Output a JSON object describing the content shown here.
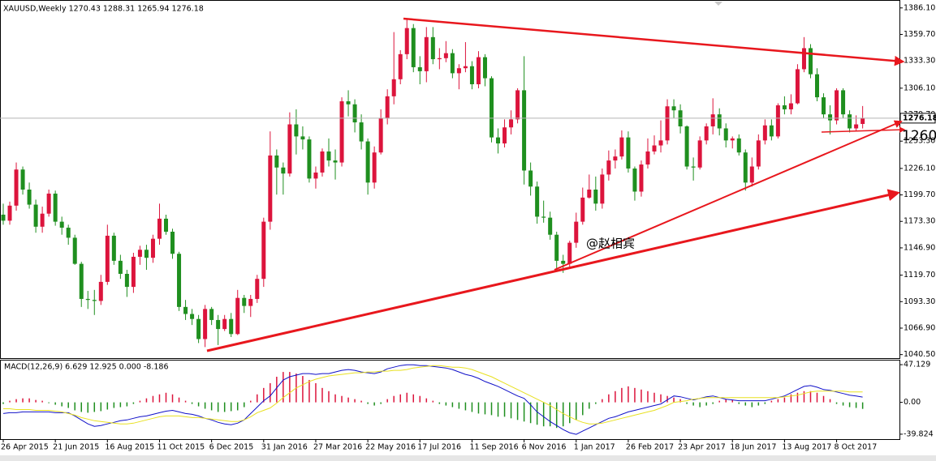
{
  "chart_data": [
    {
      "type": "candlestick",
      "title": "XAUUSD,Weekly 1270.43 1288.31 1265.94 1276.18",
      "annotations": [
        "1260",
        "@赵相宾"
      ],
      "categories": [
        "26 Apr 2015",
        null,
        null,
        null,
        null,
        null,
        null,
        null,
        "21 Jun 2015",
        null,
        null,
        null,
        null,
        null,
        null,
        null,
        "16 Aug 2015",
        null,
        null,
        null,
        null,
        null,
        null,
        null,
        "11 Oct 2015",
        null,
        null,
        null,
        null,
        null,
        null,
        null,
        "6 Dec 2015",
        null,
        null,
        null,
        null,
        null,
        null,
        null,
        "31 Jan 2016",
        null,
        null,
        null,
        null,
        null,
        null,
        null,
        "27 Mar 2016",
        null,
        null,
        null,
        null,
        null,
        null,
        null,
        "22 May 2016",
        null,
        null,
        null,
        null,
        null,
        null,
        null,
        "17 Jul 2016",
        null,
        null,
        null,
        null,
        null,
        null,
        null,
        "11 Sep 2016",
        null,
        null,
        null,
        null,
        null,
        null,
        null,
        "6 Nov 2016",
        null,
        null,
        null,
        null,
        null,
        null,
        null,
        "1 Jan 2017",
        null,
        null,
        null,
        null,
        null,
        null,
        null,
        "26 Feb 2017",
        null,
        null,
        null,
        null,
        null,
        null,
        null,
        "23 Apr 2017",
        null,
        null,
        null,
        null,
        null,
        null,
        null,
        "18 Jun 2017",
        null,
        null,
        null,
        null,
        null,
        null,
        null,
        "13 Aug 2017",
        null,
        null,
        null,
        null,
        null,
        null,
        null,
        "8 Oct 2017",
        null,
        null,
        null,
        null
      ],
      "open": [
        1180,
        1174,
        1189,
        1225,
        1205,
        1190,
        1168,
        1181,
        1201,
        1173,
        1167,
        1157,
        1131,
        1096,
        1095,
        1094,
        1113,
        1159,
        1134,
        1121,
        1108,
        1138,
        1145,
        1137,
        1156,
        1176,
        1163,
        1141,
        1088,
        1081,
        1076,
        1056,
        1086,
        1075,
        1066,
        1076,
        1061,
        1097,
        1089,
        1096,
        1116,
        1173,
        1239,
        1227,
        1221,
        1270,
        1258,
        1255,
        1216,
        1222,
        1243,
        1234,
        1232,
        1293,
        1290,
        1272,
        1253,
        1212,
        1242,
        1276,
        1298,
        1315,
        1340,
        1366,
        1327,
        1323,
        1357,
        1335,
        1336,
        1341,
        1321,
        1326,
        1328,
        1310,
        1337,
        1316,
        1257,
        1251,
        1267,
        1275,
        1304,
        1224,
        1208,
        1178,
        1177,
        1160,
        1134,
        1131,
        1152,
        1173,
        1197,
        1205,
        1191,
        1220,
        1234,
        1238,
        1257,
        1226,
        1203,
        1230,
        1243,
        1249,
        1254,
        1288,
        1284,
        1268,
        1228,
        1227,
        1254,
        1268,
        1280,
        1266,
        1254,
        1256,
        1242,
        1212,
        1228,
        1254,
        1269,
        1258,
        1289,
        1285,
        1291,
        1325,
        1346,
        1320,
        1297,
        1280,
        1274,
        1304,
        1280,
        1266,
        1270.43
      ],
      "high": [
        1191,
        1193,
        1232,
        1228,
        1212,
        1195,
        1188,
        1205,
        1204,
        1178,
        1170,
        1160,
        1133,
        1104,
        1105,
        1120,
        1170,
        1162,
        1140,
        1125,
        1142,
        1149,
        1150,
        1160,
        1191,
        1180,
        1166,
        1143,
        1095,
        1086,
        1080,
        1090,
        1088,
        1080,
        1080,
        1082,
        1105,
        1100,
        1100,
        1120,
        1177,
        1263,
        1245,
        1232,
        1282,
        1285,
        1268,
        1258,
        1228,
        1246,
        1256,
        1245,
        1297,
        1304,
        1295,
        1280,
        1256,
        1248,
        1285,
        1305,
        1362,
        1344,
        1375,
        1370,
        1338,
        1367,
        1367,
        1346,
        1353,
        1345,
        1330,
        1352,
        1333,
        1343,
        1340,
        1318,
        1266,
        1275,
        1284,
        1306,
        1338,
        1232,
        1213,
        1194,
        1183,
        1163,
        1140,
        1154,
        1182,
        1207,
        1220,
        1218,
        1226,
        1244,
        1245,
        1264,
        1263,
        1228,
        1234,
        1256,
        1259,
        1274,
        1295,
        1295,
        1290,
        1269,
        1237,
        1258,
        1271,
        1296,
        1286,
        1271,
        1258,
        1260,
        1245,
        1237,
        1260,
        1275,
        1275,
        1291,
        1298,
        1300,
        1330,
        1357,
        1350,
        1326,
        1301,
        1289,
        1306,
        1306,
        1284,
        1279,
        1288.31
      ],
      "low": [
        1170,
        1170,
        1184,
        1200,
        1186,
        1162,
        1162,
        1178,
        1169,
        1160,
        1150,
        1130,
        1088,
        1086,
        1080,
        1090,
        1110,
        1130,
        1116,
        1098,
        1102,
        1130,
        1125,
        1132,
        1150,
        1160,
        1136,
        1084,
        1075,
        1070,
        1052,
        1048,
        1070,
        1050,
        1064,
        1058,
        1060,
        1082,
        1078,
        1092,
        1108,
        1165,
        1200,
        1200,
        1218,
        1240,
        1245,
        1212,
        1206,
        1218,
        1228,
        1215,
        1228,
        1278,
        1262,
        1245,
        1200,
        1206,
        1240,
        1270,
        1290,
        1310,
        1335,
        1322,
        1310,
        1312,
        1330,
        1325,
        1332,
        1316,
        1305,
        1322,
        1305,
        1306,
        1308,
        1252,
        1241,
        1247,
        1260,
        1271,
        1210,
        1199,
        1171,
        1172,
        1155,
        1125,
        1122,
        1128,
        1147,
        1170,
        1196,
        1184,
        1186,
        1214,
        1226,
        1235,
        1222,
        1194,
        1198,
        1226,
        1240,
        1242,
        1250,
        1276,
        1261,
        1225,
        1214,
        1225,
        1250,
        1260,
        1259,
        1247,
        1246,
        1239,
        1204,
        1208,
        1225,
        1250,
        1254,
        1256,
        1280,
        1280,
        1290,
        1322,
        1316,
        1293,
        1276,
        1260,
        1270,
        1276,
        1262,
        1264,
        1265.94
      ],
      "close": [
        1174,
        1189,
        1225,
        1205,
        1190,
        1168,
        1181,
        1201,
        1173,
        1167,
        1157,
        1131,
        1096,
        1095,
        1094,
        1113,
        1159,
        1134,
        1121,
        1108,
        1138,
        1145,
        1137,
        1156,
        1176,
        1163,
        1141,
        1088,
        1081,
        1076,
        1056,
        1086,
        1075,
        1066,
        1076,
        1061,
        1097,
        1089,
        1096,
        1116,
        1173,
        1239,
        1227,
        1221,
        1270,
        1258,
        1255,
        1216,
        1222,
        1243,
        1234,
        1232,
        1293,
        1290,
        1272,
        1253,
        1212,
        1242,
        1276,
        1298,
        1315,
        1340,
        1366,
        1327,
        1323,
        1357,
        1335,
        1336,
        1341,
        1321,
        1326,
        1328,
        1310,
        1337,
        1316,
        1257,
        1251,
        1267,
        1275,
        1304,
        1224,
        1208,
        1178,
        1177,
        1160,
        1134,
        1131,
        1152,
        1173,
        1197,
        1205,
        1191,
        1220,
        1234,
        1238,
        1257,
        1226,
        1203,
        1230,
        1243,
        1249,
        1254,
        1288,
        1284,
        1268,
        1228,
        1227,
        1254,
        1268,
        1280,
        1266,
        1254,
        1256,
        1242,
        1212,
        1228,
        1254,
        1269,
        1258,
        1289,
        1285,
        1291,
        1325,
        1346,
        1320,
        1297,
        1280,
        1274,
        1304,
        1280,
        1266,
        1270,
        1276.18
      ],
      "up_color": "#dc143c",
      "down_color": "#1f8f1f",
      "ylim": [
        1037,
        1394
      ],
      "yticks": [
        {
          "value": 1386.1,
          "label": "1386.10"
        },
        {
          "value": 1359.7,
          "label": "1359.70"
        },
        {
          "value": 1333.3,
          "label": "1333.30"
        },
        {
          "value": 1306.1,
          "label": "1306.10"
        },
        {
          "value": 1279.7,
          "label": "1279.70"
        },
        {
          "value": 1253.3,
          "label": "1253.30"
        },
        {
          "value": 1226.1,
          "label": "1226.10"
        },
        {
          "value": 1199.7,
          "label": "1199.70"
        },
        {
          "value": 1173.3,
          "label": "1173.30"
        },
        {
          "value": 1146.9,
          "label": "1146.90"
        },
        {
          "value": 1119.7,
          "label": "1119.70"
        },
        {
          "value": 1093.3,
          "label": "1093.30"
        },
        {
          "value": 1066.9,
          "label": "1066.90"
        },
        {
          "value": 1040.5,
          "label": "1040.50"
        }
      ]
    },
    {
      "type": "macd",
      "title": "MACD(12,26,9) 6.629 12.925 0.000 -8.186",
      "series": [
        {
          "color": "#1010c8",
          "values": [
            -14,
            -13,
            -13,
            -12,
            -12,
            -12,
            -12,
            -12,
            -13,
            -13,
            -13,
            -17,
            -22,
            -27,
            -30,
            -29,
            -27,
            -25,
            -23,
            -22,
            -20,
            -18,
            -17,
            -15,
            -13,
            -11,
            -10,
            -12,
            -14,
            -15,
            -17,
            -20,
            -22,
            -25,
            -27,
            -28,
            -26,
            -22,
            -14,
            -6,
            2,
            8,
            18,
            28,
            32,
            34,
            36,
            36,
            35,
            36,
            36,
            38,
            40,
            41,
            40,
            38,
            37,
            36,
            38,
            42,
            44,
            46,
            47,
            47,
            46,
            46,
            45,
            44,
            43,
            41,
            38,
            35,
            33,
            30,
            26,
            23,
            20,
            16,
            12,
            8,
            5,
            -3,
            -12,
            -18,
            -24,
            -29,
            -34,
            -38,
            -40,
            -36,
            -32,
            -28,
            -24,
            -20,
            -18,
            -15,
            -12,
            -10,
            -8,
            -6,
            -4,
            -2,
            3,
            8,
            7,
            5,
            3,
            5,
            7,
            8,
            6,
            4,
            3,
            2,
            2,
            2,
            2,
            2,
            4,
            6,
            8,
            12,
            16,
            20,
            21,
            19,
            16,
            15,
            13,
            11,
            9,
            8,
            6.629
          ]
        },
        {
          "color": "#e8e020",
          "values": [
            -8,
            -8,
            -9,
            -9,
            -9,
            -10,
            -10,
            -10,
            -11,
            -12,
            -14,
            -16,
            -19,
            -21,
            -23,
            -24,
            -25,
            -26,
            -27,
            -27,
            -26,
            -24,
            -22,
            -20,
            -18,
            -17,
            -17,
            -17,
            -18,
            -19,
            -19,
            -20,
            -21,
            -22,
            -23,
            -24,
            -24,
            -22,
            -18,
            -13,
            -10,
            -7,
            -1,
            6,
            12,
            18,
            22,
            26,
            29,
            31,
            33,
            34,
            35,
            36,
            37,
            37,
            38,
            38,
            39,
            39,
            40,
            40,
            41,
            43,
            44,
            45,
            46,
            46,
            45,
            44,
            44,
            43,
            41,
            38,
            35,
            32,
            28,
            24,
            20,
            16,
            12,
            8,
            4,
            0,
            -4,
            -9,
            -14,
            -18,
            -22,
            -25,
            -27,
            -27,
            -26,
            -24,
            -22,
            -20,
            -18,
            -16,
            -14,
            -12,
            -10,
            -7,
            -4,
            0,
            1,
            2,
            4,
            5,
            6,
            6,
            6,
            6,
            6,
            6,
            6,
            6,
            6,
            6,
            6,
            6,
            7,
            8,
            9,
            11,
            13,
            14,
            14,
            14,
            14,
            14,
            13,
            13,
            12.925
          ]
        }
      ],
      "histogram": [
        -2,
        2,
        4,
        5,
        5,
        3,
        2,
        -1,
        -3,
        -5,
        -7,
        -10,
        -12,
        -13,
        -12,
        -11,
        -9,
        -7,
        -6,
        -5,
        -2,
        2,
        5,
        8,
        10,
        12,
        10,
        6,
        2,
        -2,
        -5,
        -8,
        -10,
        -12,
        -12,
        -11,
        -10,
        -6,
        2,
        10,
        18,
        24,
        32,
        38,
        38,
        36,
        33,
        28,
        24,
        18,
        14,
        10,
        8,
        6,
        4,
        2,
        -2,
        -4,
        -2,
        4,
        8,
        10,
        12,
        10,
        8,
        5,
        2,
        -2,
        -4,
        -6,
        -8,
        -10,
        -12,
        -14,
        -15,
        -16,
        -18,
        -18,
        -20,
        -22,
        -24,
        -26,
        -28,
        -30,
        -30,
        -32,
        -30,
        -26,
        -22,
        -16,
        -8,
        -2,
        4,
        10,
        14,
        18,
        20,
        18,
        16,
        14,
        12,
        10,
        8,
        6,
        4,
        -2,
        -4,
        -6,
        -4,
        -2,
        2,
        4,
        3,
        -2,
        -4,
        -6,
        -4,
        -2,
        2,
        4,
        6,
        10,
        12,
        14,
        14,
        12,
        8,
        4,
        -2,
        -4,
        -6,
        -7,
        -8.186
      ],
      "up_color": "#dc143c",
      "down_color": "#1f8f1f",
      "ylim": [
        -46,
        53.3
      ],
      "yticks": [
        47.129,
        {
          "value": 0,
          "label": "0.00"
        },
        -39.824
      ]
    }
  ]
}
